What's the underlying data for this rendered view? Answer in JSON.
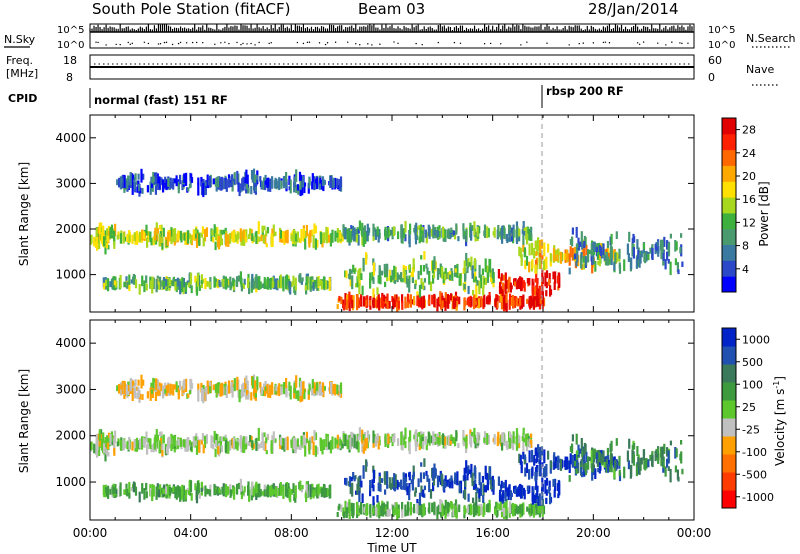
{
  "header": {
    "station": "South Pole Station (fitACF)",
    "beam": "Beam 03",
    "date": "28/Jan/2014"
  },
  "noise_panel": {
    "left_label": "N.Sky",
    "right_label": "N.Search",
    "ticks": [
      "10^5",
      "10^0"
    ]
  },
  "freq_panel": {
    "left_label_1": "Freq.",
    "left_label_2": "[MHz]",
    "left_ticks": [
      "18",
      "8"
    ],
    "right_label": "Nave",
    "right_ticks": [
      "60",
      "0"
    ]
  },
  "cpid": {
    "label": "CPID",
    "modes": [
      {
        "name": "normal (fast) 151 RF",
        "start_hour": 0
      },
      {
        "name": "rbsp 200 RF",
        "start_hour": 18
      }
    ]
  },
  "x_axis": {
    "ticks": [
      "00:00",
      "04:00",
      "08:00",
      "12:00",
      "16:00",
      "20:00",
      "00:00"
    ],
    "label": "Time UT",
    "range_hours": [
      0,
      24
    ]
  },
  "chart_data": [
    {
      "type": "heatmap",
      "quantity": "Power",
      "ylabel": "Slant Range [km]",
      "yticks": [
        "1000",
        "2000",
        "3000",
        "4000"
      ],
      "ylim": [
        180,
        4500
      ],
      "xlim": [
        0,
        24
      ],
      "colorbar": {
        "label": "Power [dB]",
        "ticks": [
          "4",
          "8",
          "12",
          "16",
          "20",
          "24",
          "28"
        ],
        "range": [
          0,
          30
        ],
        "colors": [
          "#0000ff",
          "#2a48c8",
          "#3a7aa0",
          "#4a9a70",
          "#3db03d",
          "#a8d81e",
          "#ffe000",
          "#ffa800",
          "#ff6800",
          "#ff2000",
          "#e00000"
        ]
      },
      "features": [
        {
          "t0": 0.0,
          "t1": 10.0,
          "r": 1820,
          "w": 230,
          "level": 16
        },
        {
          "t0": 10.0,
          "t1": 17.5,
          "r": 1900,
          "w": 180,
          "level": 10
        },
        {
          "t0": 0.5,
          "t1": 9.5,
          "r": 800,
          "w": 150,
          "level": 12
        },
        {
          "t0": 9.8,
          "t1": 18.0,
          "r": 400,
          "w": 120,
          "level": 26
        },
        {
          "t0": 16.2,
          "t1": 18.6,
          "r": 800,
          "w": 250,
          "level": 28
        },
        {
          "t0": 17.0,
          "t1": 21.0,
          "r": 1400,
          "w": 300,
          "level": 18
        },
        {
          "t0": 10.0,
          "t1": 16.0,
          "r": 1000,
          "w": 450,
          "level": 13
        },
        {
          "t0": 19.0,
          "t1": 23.5,
          "r": 1500,
          "w": 500,
          "level": 8
        },
        {
          "t0": 1.0,
          "t1": 10.0,
          "r": 3000,
          "w": 200,
          "level": 5
        }
      ]
    },
    {
      "type": "heatmap",
      "quantity": "Velocity",
      "ylabel": "Slant Range [km]",
      "yticks": [
        "1000",
        "2000",
        "3000",
        "4000"
      ],
      "ylim": [
        180,
        4500
      ],
      "xlim": [
        0,
        24
      ],
      "colorbar": {
        "label": "Velocity [m s-1]",
        "ticks": [
          "1000",
          "500",
          "100",
          "25",
          "-25",
          "-100",
          "-500",
          "-1000"
        ],
        "range": [
          -1000,
          1000
        ],
        "colors": [
          "#0024c8",
          "#2050b0",
          "#3a7a5a",
          "#3e9a3e",
          "#5cc82e",
          "#c0c0c0",
          "#ffa000",
          "#ff7000",
          "#ff3c00",
          "#ff0000"
        ]
      },
      "features": [
        {
          "t0": 0.0,
          "t1": 10.0,
          "r": 1820,
          "w": 230,
          "v": 0
        },
        {
          "t0": 10.0,
          "t1": 17.5,
          "r": 1900,
          "w": 180,
          "v": 0
        },
        {
          "t0": 0.5,
          "t1": 9.5,
          "r": 800,
          "w": 150,
          "v": 200
        },
        {
          "t0": 9.8,
          "t1": 18.0,
          "r": 400,
          "w": 120,
          "v": 150
        },
        {
          "t0": 16.2,
          "t1": 18.6,
          "r": 800,
          "w": 250,
          "v": 900
        },
        {
          "t0": 17.0,
          "t1": 21.0,
          "r": 1400,
          "w": 300,
          "v": 800
        },
        {
          "t0": 10.0,
          "t1": 16.0,
          "r": 1000,
          "w": 450,
          "v": 700
        },
        {
          "t0": 19.0,
          "t1": 23.5,
          "r": 1500,
          "w": 500,
          "v": 400
        },
        {
          "t0": 1.0,
          "t1": 10.0,
          "r": 3000,
          "w": 200,
          "v": -150
        }
      ]
    }
  ]
}
